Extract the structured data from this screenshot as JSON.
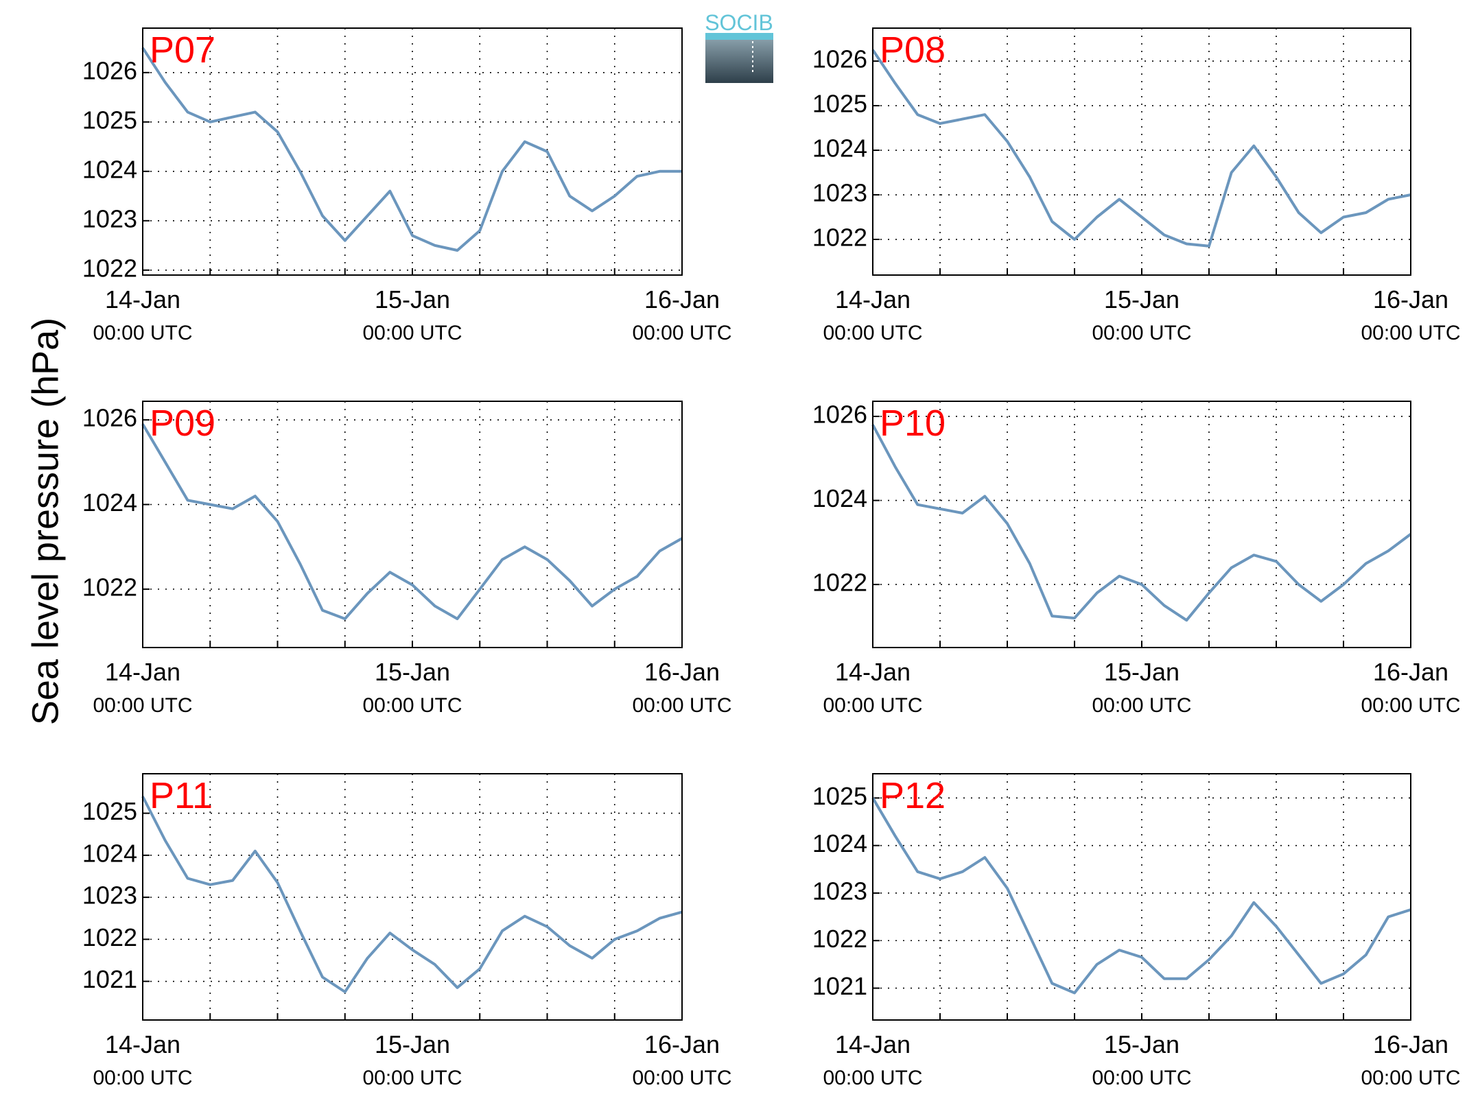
{
  "ylabel": "Sea level pressure (hPa)",
  "logo": "SOCIB",
  "chart_data": [
    {
      "type": "line",
      "title": "P07",
      "color": "#6b96bd",
      "grid": true,
      "x": [
        "14-Jan 00:00",
        "14-Jan 02:00",
        "14-Jan 04:00",
        "14-Jan 06:00",
        "14-Jan 08:00",
        "14-Jan 10:00",
        "14-Jan 12:00",
        "14-Jan 14:00",
        "14-Jan 16:00",
        "14-Jan 18:00",
        "14-Jan 20:00",
        "14-Jan 22:00",
        "15-Jan 00:00",
        "15-Jan 02:00",
        "15-Jan 04:00",
        "15-Jan 06:00",
        "15-Jan 08:00",
        "15-Jan 10:00",
        "15-Jan 12:00",
        "15-Jan 14:00",
        "15-Jan 16:00",
        "15-Jan 18:00",
        "15-Jan 20:00",
        "15-Jan 22:00",
        "16-Jan 00:00"
      ],
      "values": [
        1026.5,
        1025.8,
        1025.2,
        1025.0,
        1025.1,
        1025.2,
        1024.8,
        1024.0,
        1023.1,
        1022.6,
        1023.1,
        1023.6,
        1022.7,
        1022.5,
        1022.4,
        1022.8,
        1024.0,
        1024.6,
        1024.4,
        1023.5,
        1023.2,
        1023.5,
        1023.9,
        1024.0,
        1024.0
      ],
      "xlim": [
        "14-Jan 00:00",
        "16-Jan 00:00"
      ],
      "xticks": [
        {
          "value": "14-Jan 00:00",
          "label": [
            "14-Jan",
            "00:00 UTC"
          ]
        },
        "14-Jan 06:00",
        "14-Jan 12:00",
        "14-Jan 18:00",
        {
          "value": "15-Jan 00:00",
          "label": [
            "15-Jan",
            "00:00 UTC"
          ]
        },
        "15-Jan 06:00",
        "15-Jan 12:00",
        "15-Jan 18:00",
        {
          "value": "16-Jan 00:00",
          "label": [
            "16-Jan",
            "00:00 UTC"
          ]
        }
      ],
      "ylim": [
        1021.9,
        1026.9
      ],
      "yticks": [
        1022,
        1023,
        1024,
        1025,
        1026
      ]
    },
    {
      "type": "line",
      "title": "P08",
      "color": "#6b96bd",
      "grid": true,
      "x": [
        "14-Jan 00:00",
        "14-Jan 02:00",
        "14-Jan 04:00",
        "14-Jan 06:00",
        "14-Jan 08:00",
        "14-Jan 10:00",
        "14-Jan 12:00",
        "14-Jan 14:00",
        "14-Jan 16:00",
        "14-Jan 18:00",
        "14-Jan 20:00",
        "14-Jan 22:00",
        "15-Jan 00:00",
        "15-Jan 02:00",
        "15-Jan 04:00",
        "15-Jan 06:00",
        "15-Jan 08:00",
        "15-Jan 10:00",
        "15-Jan 12:00",
        "15-Jan 14:00",
        "15-Jan 16:00",
        "15-Jan 18:00",
        "15-Jan 20:00",
        "15-Jan 22:00",
        "16-Jan 00:00"
      ],
      "values": [
        1026.25,
        1025.5,
        1024.8,
        1024.6,
        1024.7,
        1024.8,
        1024.2,
        1023.4,
        1022.4,
        1022.0,
        1022.5,
        1022.9,
        1022.5,
        1022.1,
        1021.9,
        1021.85,
        1023.5,
        1024.1,
        1023.4,
        1022.6,
        1022.15,
        1022.5,
        1022.6,
        1022.9,
        1023.0
      ],
      "xlim": [
        "14-Jan 00:00",
        "16-Jan 00:00"
      ],
      "xticks": [
        {
          "value": "14-Jan 00:00",
          "label": [
            "14-Jan",
            "00:00 UTC"
          ]
        },
        "14-Jan 06:00",
        "14-Jan 12:00",
        "14-Jan 18:00",
        {
          "value": "15-Jan 00:00",
          "label": [
            "15-Jan",
            "00:00 UTC"
          ]
        },
        "15-Jan 06:00",
        "15-Jan 12:00",
        "15-Jan 18:00",
        {
          "value": "16-Jan 00:00",
          "label": [
            "16-Jan",
            "00:00 UTC"
          ]
        }
      ],
      "ylim": [
        1021.2,
        1026.74
      ],
      "yticks": [
        1022,
        1023,
        1024,
        1025,
        1026
      ]
    },
    {
      "type": "line",
      "title": "P09",
      "color": "#6b96bd",
      "grid": true,
      "x": [
        "14-Jan 00:00",
        "14-Jan 02:00",
        "14-Jan 04:00",
        "14-Jan 06:00",
        "14-Jan 08:00",
        "14-Jan 10:00",
        "14-Jan 12:00",
        "14-Jan 14:00",
        "14-Jan 16:00",
        "14-Jan 18:00",
        "14-Jan 20:00",
        "14-Jan 22:00",
        "15-Jan 00:00",
        "15-Jan 02:00",
        "15-Jan 04:00",
        "15-Jan 06:00",
        "15-Jan 08:00",
        "15-Jan 10:00",
        "15-Jan 12:00",
        "15-Jan 14:00",
        "15-Jan 16:00",
        "15-Jan 18:00",
        "15-Jan 20:00",
        "15-Jan 22:00",
        "16-Jan 00:00"
      ],
      "values": [
        1025.9,
        1025.0,
        1024.1,
        1024.0,
        1023.9,
        1024.2,
        1023.6,
        1022.6,
        1021.5,
        1021.3,
        1021.9,
        1022.4,
        1022.1,
        1021.6,
        1021.3,
        1022.0,
        1022.7,
        1023.0,
        1022.7,
        1022.2,
        1021.6,
        1022.0,
        1022.3,
        1022.9,
        1023.2
      ],
      "xlim": [
        "14-Jan 00:00",
        "16-Jan 00:00"
      ],
      "xticks": [
        {
          "value": "14-Jan 00:00",
          "label": [
            "14-Jan",
            "00:00 UTC"
          ]
        },
        "14-Jan 06:00",
        "14-Jan 12:00",
        "14-Jan 18:00",
        {
          "value": "15-Jan 00:00",
          "label": [
            "15-Jan",
            "00:00 UTC"
          ]
        },
        "15-Jan 06:00",
        "15-Jan 12:00",
        "15-Jan 18:00",
        {
          "value": "16-Jan 00:00",
          "label": [
            "16-Jan",
            "00:00 UTC"
          ]
        }
      ],
      "ylim": [
        1020.62,
        1026.44
      ],
      "yticks": [
        1022,
        1024,
        1026
      ]
    },
    {
      "type": "line",
      "title": "P10",
      "color": "#6b96bd",
      "grid": true,
      "x": [
        "14-Jan 00:00",
        "14-Jan 02:00",
        "14-Jan 04:00",
        "14-Jan 06:00",
        "14-Jan 08:00",
        "14-Jan 10:00",
        "14-Jan 12:00",
        "14-Jan 14:00",
        "14-Jan 16:00",
        "14-Jan 18:00",
        "14-Jan 20:00",
        "14-Jan 22:00",
        "15-Jan 00:00",
        "15-Jan 02:00",
        "15-Jan 04:00",
        "15-Jan 06:00",
        "15-Jan 08:00",
        "15-Jan 10:00",
        "15-Jan 12:00",
        "15-Jan 14:00",
        "15-Jan 16:00",
        "15-Jan 18:00",
        "15-Jan 20:00",
        "15-Jan 22:00",
        "16-Jan 00:00"
      ],
      "values": [
        1025.8,
        1024.8,
        1023.9,
        1023.8,
        1023.7,
        1024.1,
        1023.45,
        1022.5,
        1021.25,
        1021.2,
        1021.8,
        1022.2,
        1022.0,
        1021.5,
        1021.15,
        1021.8,
        1022.4,
        1022.7,
        1022.55,
        1022.0,
        1021.6,
        1022.0,
        1022.5,
        1022.8,
        1023.2
      ],
      "xlim": [
        "14-Jan 00:00",
        "16-Jan 00:00"
      ],
      "xticks": [
        {
          "value": "14-Jan 00:00",
          "label": [
            "14-Jan",
            "00:00 UTC"
          ]
        },
        "14-Jan 06:00",
        "14-Jan 12:00",
        "14-Jan 18:00",
        {
          "value": "15-Jan 00:00",
          "label": [
            "15-Jan",
            "00:00 UTC"
          ]
        },
        "15-Jan 06:00",
        "15-Jan 12:00",
        "15-Jan 18:00",
        {
          "value": "16-Jan 00:00",
          "label": [
            "16-Jan",
            "00:00 UTC"
          ]
        }
      ],
      "ylim": [
        1020.5,
        1026.36
      ],
      "yticks": [
        1022,
        1024,
        1026
      ]
    },
    {
      "type": "line",
      "title": "P11",
      "color": "#6b96bd",
      "grid": true,
      "x": [
        "14-Jan 00:00",
        "14-Jan 02:00",
        "14-Jan 04:00",
        "14-Jan 06:00",
        "14-Jan 08:00",
        "14-Jan 10:00",
        "14-Jan 12:00",
        "14-Jan 14:00",
        "14-Jan 16:00",
        "14-Jan 18:00",
        "14-Jan 20:00",
        "14-Jan 22:00",
        "15-Jan 00:00",
        "15-Jan 02:00",
        "15-Jan 04:00",
        "15-Jan 06:00",
        "15-Jan 08:00",
        "15-Jan 10:00",
        "15-Jan 12:00",
        "15-Jan 14:00",
        "15-Jan 16:00",
        "15-Jan 18:00",
        "15-Jan 20:00",
        "15-Jan 22:00",
        "16-Jan 00:00"
      ],
      "values": [
        1025.4,
        1024.35,
        1023.45,
        1023.3,
        1023.4,
        1024.1,
        1023.35,
        1022.2,
        1021.1,
        1020.75,
        1021.55,
        1022.15,
        1021.75,
        1021.4,
        1020.85,
        1021.3,
        1022.2,
        1022.55,
        1022.3,
        1021.85,
        1021.55,
        1022.0,
        1022.2,
        1022.5,
        1022.65
      ],
      "xlim": [
        "14-Jan 00:00",
        "16-Jan 00:00"
      ],
      "xticks": [
        {
          "value": "14-Jan 00:00",
          "label": [
            "14-Jan",
            "00:00 UTC"
          ]
        },
        "14-Jan 06:00",
        "14-Jan 12:00",
        "14-Jan 18:00",
        {
          "value": "15-Jan 00:00",
          "label": [
            "15-Jan",
            "00:00 UTC"
          ]
        },
        "15-Jan 06:00",
        "15-Jan 12:00",
        "15-Jan 18:00",
        {
          "value": "16-Jan 00:00",
          "label": [
            "16-Jan",
            "00:00 UTC"
          ]
        }
      ],
      "ylim": [
        1020.08,
        1025.94
      ],
      "yticks": [
        1021,
        1022,
        1023,
        1024,
        1025
      ]
    },
    {
      "type": "line",
      "title": "P12",
      "color": "#6b96bd",
      "grid": true,
      "x": [
        "14-Jan 00:00",
        "14-Jan 02:00",
        "14-Jan 04:00",
        "14-Jan 06:00",
        "14-Jan 08:00",
        "14-Jan 10:00",
        "14-Jan 12:00",
        "14-Jan 14:00",
        "14-Jan 16:00",
        "14-Jan 18:00",
        "14-Jan 20:00",
        "14-Jan 22:00",
        "15-Jan 00:00",
        "15-Jan 02:00",
        "15-Jan 04:00",
        "15-Jan 06:00",
        "15-Jan 08:00",
        "15-Jan 10:00",
        "15-Jan 12:00",
        "15-Jan 14:00",
        "15-Jan 16:00",
        "15-Jan 18:00",
        "15-Jan 20:00",
        "15-Jan 22:00",
        "16-Jan 00:00"
      ],
      "values": [
        1025.0,
        1024.2,
        1023.45,
        1023.3,
        1023.45,
        1023.75,
        1023.1,
        1022.1,
        1021.1,
        1020.9,
        1021.5,
        1021.8,
        1021.65,
        1021.2,
        1021.2,
        1021.6,
        1022.1,
        1022.8,
        1022.3,
        1021.7,
        1021.1,
        1021.3,
        1021.7,
        1022.5,
        1022.65
      ],
      "xlim": [
        "14-Jan 00:00",
        "16-Jan 00:00"
      ],
      "xticks": [
        {
          "value": "14-Jan 00:00",
          "label": [
            "14-Jan",
            "00:00 UTC"
          ]
        },
        "14-Jan 06:00",
        "14-Jan 12:00",
        "14-Jan 18:00",
        {
          "value": "15-Jan 00:00",
          "label": [
            "15-Jan",
            "00:00 UTC"
          ]
        },
        "15-Jan 06:00",
        "15-Jan 12:00",
        "15-Jan 18:00",
        {
          "value": "16-Jan 00:00",
          "label": [
            "16-Jan",
            "00:00 UTC"
          ]
        }
      ],
      "ylim": [
        1020.33,
        1025.51
      ],
      "yticks": [
        1021,
        1022,
        1023,
        1024,
        1025
      ]
    }
  ]
}
